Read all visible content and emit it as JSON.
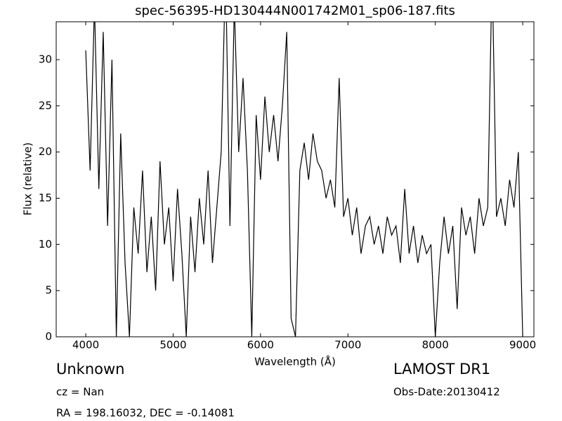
{
  "chart_data": {
    "type": "line",
    "title": "spec-56395-HD130444N001742M01_sp06-187.fits",
    "x_label": "Wavelength (Å)",
    "y_label": "Flux (relative)",
    "annotations": [
      "Unknown",
      "cz = Nan",
      "RA = 198.16032, DEC = -0.14081",
      "LAMOST DR1",
      "Obs-Date:20130412"
    ],
    "x": [
      4000,
      4050,
      4100,
      4150,
      4200,
      4250,
      4300,
      4350,
      4400,
      4450,
      4500,
      4550,
      4600,
      4650,
      4700,
      4750,
      4800,
      4850,
      4900,
      4950,
      5000,
      5050,
      5100,
      5150,
      5200,
      5250,
      5300,
      5350,
      5400,
      5450,
      5500,
      5550,
      5600,
      5650,
      5700,
      5750,
      5800,
      5850,
      5900,
      5950,
      6000,
      6050,
      6100,
      6150,
      6200,
      6250,
      6300,
      6350,
      6400,
      6450,
      6500,
      6550,
      6600,
      6650,
      6700,
      6750,
      6800,
      6850,
      6900,
      6950,
      7000,
      7050,
      7100,
      7150,
      7200,
      7250,
      7300,
      7350,
      7400,
      7450,
      7500,
      7550,
      7600,
      7650,
      7700,
      7750,
      7800,
      7850,
      7900,
      7950,
      8000,
      8050,
      8100,
      8150,
      8200,
      8250,
      8300,
      8350,
      8400,
      8450,
      8500,
      8550,
      8600,
      8650,
      8700,
      8750,
      8800,
      8850,
      8900,
      8950,
      9000
    ],
    "values": [
      31,
      18,
      36,
      16,
      33,
      12,
      30,
      0,
      22,
      8,
      0,
      14,
      9,
      18,
      7,
      13,
      5,
      19,
      10,
      14,
      6,
      16,
      9,
      0,
      13,
      7,
      15,
      10,
      18,
      8,
      14,
      20,
      40,
      12,
      36,
      20,
      28,
      18,
      0,
      24,
      17,
      26,
      20,
      24,
      19,
      25,
      33,
      2,
      0,
      18,
      21,
      17,
      22,
      19,
      18,
      15,
      17,
      14,
      28,
      13,
      15,
      11,
      14,
      9,
      12,
      13,
      10,
      12,
      9,
      13,
      11,
      12,
      8,
      16,
      9,
      12,
      8,
      11,
      9,
      10,
      0,
      8,
      13,
      9,
      12,
      3,
      14,
      11,
      13,
      9,
      15,
      12,
      14,
      40,
      13,
      15,
      12,
      17,
      14,
      20,
      0
    ],
    "color": "#000000",
    "xlim": [
      3662,
      9128
    ],
    "ylim": [
      0,
      34.1
    ],
    "xticks": [
      4000,
      5000,
      6000,
      7000,
      8000,
      9000
    ],
    "yticks": [
      0,
      5,
      10,
      15,
      20,
      25,
      30
    ]
  }
}
